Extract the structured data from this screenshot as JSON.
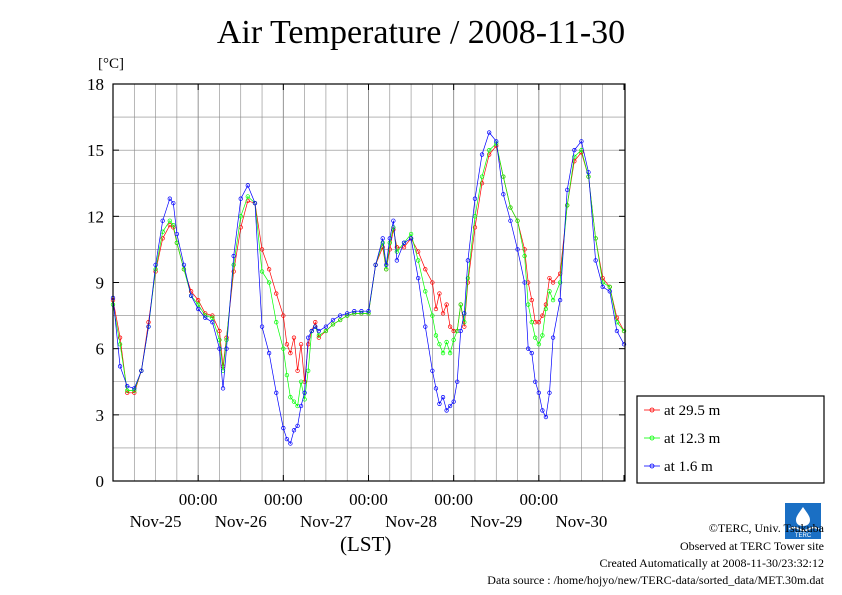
{
  "title": "Air Temperature / 2008-11-30",
  "unit_label": "[°C]",
  "xlabel": "(LST)",
  "credits": {
    "copyright": "©TERC, Univ. Tsukuba",
    "observed": "Observed at TERC Tower site",
    "created": "Created Automatically at 2008-11-30/23:32:12",
    "source": "Data source : /home/hojyo/new/TERC-data/sorted_data/MET.30m.dat"
  },
  "logo_text": "TERC",
  "colors": {
    "s29_5": "#ff0000",
    "s12_3": "#00ff00",
    "s1_6": "#0000ff",
    "grid": "#888888"
  },
  "chart_data": {
    "type": "line",
    "ylim": [
      0,
      18
    ],
    "yticks": [
      0,
      3,
      6,
      9,
      12,
      15,
      18
    ],
    "xlim": [
      0,
      6
    ],
    "xticks": [
      {
        "x": 1,
        "time": "00:00",
        "date": "Nov-25"
      },
      {
        "x": 2,
        "time": "00:00",
        "date": "Nov-26"
      },
      {
        "x": 3,
        "time": "00:00",
        "date": "Nov-27"
      },
      {
        "x": 4,
        "time": "00:00",
        "date": "Nov-28"
      },
      {
        "x": 5,
        "time": "00:00",
        "date": "Nov-29"
      },
      {
        "x": 6,
        "time": "",
        "date": "Nov-30"
      }
    ],
    "grid": true,
    "legend_position": "right",
    "series": [
      {
        "name": "at 29.5 m",
        "color": "#ff0000",
        "points": [
          [
            0.0,
            8.2
          ],
          [
            0.083,
            6.5
          ],
          [
            0.167,
            4.0
          ],
          [
            0.25,
            4.0
          ],
          [
            0.333,
            5.0
          ],
          [
            0.417,
            7.2
          ],
          [
            0.5,
            9.5
          ],
          [
            0.583,
            11.0
          ],
          [
            0.667,
            11.6
          ],
          [
            0.708,
            11.5
          ],
          [
            0.75,
            10.8
          ],
          [
            0.833,
            9.6
          ],
          [
            0.917,
            8.6
          ],
          [
            1.0,
            8.2
          ],
          [
            1.083,
            7.6
          ],
          [
            1.167,
            7.5
          ],
          [
            1.25,
            6.8
          ],
          [
            1.292,
            5.2
          ],
          [
            1.333,
            6.5
          ],
          [
            1.417,
            9.5
          ],
          [
            1.5,
            11.5
          ],
          [
            1.583,
            12.7
          ],
          [
            1.667,
            12.6
          ],
          [
            1.75,
            10.5
          ],
          [
            1.833,
            9.6
          ],
          [
            1.917,
            8.5
          ],
          [
            2.0,
            7.5
          ],
          [
            2.042,
            6.2
          ],
          [
            2.083,
            5.8
          ],
          [
            2.125,
            6.5
          ],
          [
            2.167,
            5.0
          ],
          [
            2.208,
            6.2
          ],
          [
            2.25,
            4.5
          ],
          [
            2.292,
            6.2
          ],
          [
            2.333,
            6.8
          ],
          [
            2.375,
            7.2
          ],
          [
            2.417,
            6.5
          ],
          [
            2.5,
            6.8
          ],
          [
            2.583,
            7.1
          ],
          [
            2.667,
            7.3
          ],
          [
            2.75,
            7.5
          ],
          [
            2.833,
            7.6
          ],
          [
            2.917,
            7.6
          ],
          [
            3.0,
            7.6
          ],
          [
            3.083,
            9.8
          ],
          [
            3.167,
            10.6
          ],
          [
            3.208,
            9.6
          ],
          [
            3.25,
            10.5
          ],
          [
            3.292,
            11.4
          ],
          [
            3.333,
            10.6
          ],
          [
            3.417,
            10.6
          ],
          [
            3.5,
            11.0
          ],
          [
            3.583,
            10.4
          ],
          [
            3.667,
            9.6
          ],
          [
            3.75,
            9.0
          ],
          [
            3.792,
            7.8
          ],
          [
            3.833,
            8.5
          ],
          [
            3.875,
            7.6
          ],
          [
            3.917,
            8.0
          ],
          [
            3.958,
            7.0
          ],
          [
            4.0,
            6.8
          ],
          [
            4.042,
            6.8
          ],
          [
            4.083,
            8.0
          ],
          [
            4.125,
            7.0
          ],
          [
            4.167,
            9.0
          ],
          [
            4.25,
            11.5
          ],
          [
            4.333,
            13.5
          ],
          [
            4.417,
            14.8
          ],
          [
            4.5,
            15.2
          ],
          [
            4.583,
            13.8
          ],
          [
            4.667,
            12.4
          ],
          [
            4.75,
            11.8
          ],
          [
            4.833,
            10.5
          ],
          [
            4.875,
            9.0
          ],
          [
            4.917,
            8.2
          ],
          [
            4.958,
            7.2
          ],
          [
            5.0,
            7.2
          ],
          [
            5.042,
            7.5
          ],
          [
            5.083,
            8.0
          ],
          [
            5.125,
            9.2
          ],
          [
            5.167,
            9.0
          ],
          [
            5.25,
            9.4
          ],
          [
            5.333,
            12.5
          ],
          [
            5.417,
            14.5
          ],
          [
            5.5,
            14.9
          ],
          [
            5.583,
            13.8
          ],
          [
            5.667,
            11.0
          ],
          [
            5.75,
            9.2
          ],
          [
            5.833,
            8.8
          ],
          [
            5.917,
            7.4
          ],
          [
            6.0,
            6.8
          ]
        ]
      },
      {
        "name": "at 12.3 m",
        "color": "#00ff00",
        "points": [
          [
            0.0,
            8.0
          ],
          [
            0.083,
            6.2
          ],
          [
            0.167,
            4.1
          ],
          [
            0.25,
            4.1
          ],
          [
            0.333,
            5.0
          ],
          [
            0.417,
            7.0
          ],
          [
            0.5,
            9.6
          ],
          [
            0.583,
            11.3
          ],
          [
            0.667,
            11.8
          ],
          [
            0.708,
            11.6
          ],
          [
            0.75,
            10.8
          ],
          [
            0.833,
            9.6
          ],
          [
            0.917,
            8.4
          ],
          [
            1.0,
            8.0
          ],
          [
            1.083,
            7.5
          ],
          [
            1.167,
            7.4
          ],
          [
            1.25,
            6.4
          ],
          [
            1.292,
            5.0
          ],
          [
            1.333,
            6.4
          ],
          [
            1.417,
            9.8
          ],
          [
            1.5,
            12.0
          ],
          [
            1.583,
            12.9
          ],
          [
            1.667,
            12.6
          ],
          [
            1.75,
            9.5
          ],
          [
            1.833,
            9.0
          ],
          [
            1.917,
            7.2
          ],
          [
            2.0,
            6.0
          ],
          [
            2.042,
            4.8
          ],
          [
            2.083,
            3.8
          ],
          [
            2.125,
            3.6
          ],
          [
            2.167,
            3.4
          ],
          [
            2.208,
            4.5
          ],
          [
            2.25,
            3.7
          ],
          [
            2.292,
            5.0
          ],
          [
            2.333,
            6.8
          ],
          [
            2.375,
            7.0
          ],
          [
            2.417,
            6.6
          ],
          [
            2.5,
            6.8
          ],
          [
            2.583,
            7.1
          ],
          [
            2.667,
            7.3
          ],
          [
            2.75,
            7.5
          ],
          [
            2.833,
            7.6
          ],
          [
            2.917,
            7.6
          ],
          [
            3.0,
            7.6
          ],
          [
            3.083,
            9.8
          ],
          [
            3.167,
            10.8
          ],
          [
            3.208,
            9.6
          ],
          [
            3.25,
            10.8
          ],
          [
            3.292,
            11.5
          ],
          [
            3.333,
            10.4
          ],
          [
            3.417,
            10.8
          ],
          [
            3.5,
            11.2
          ],
          [
            3.583,
            10.0
          ],
          [
            3.667,
            8.6
          ],
          [
            3.75,
            7.5
          ],
          [
            3.792,
            6.6
          ],
          [
            3.833,
            6.2
          ],
          [
            3.875,
            5.8
          ],
          [
            3.917,
            6.3
          ],
          [
            3.958,
            5.8
          ],
          [
            4.0,
            6.4
          ],
          [
            4.042,
            6.8
          ],
          [
            4.083,
            8.0
          ],
          [
            4.125,
            7.2
          ],
          [
            4.167,
            9.2
          ],
          [
            4.25,
            12.0
          ],
          [
            4.333,
            13.8
          ],
          [
            4.417,
            15.0
          ],
          [
            4.5,
            15.3
          ],
          [
            4.583,
            13.8
          ],
          [
            4.667,
            12.4
          ],
          [
            4.75,
            11.8
          ],
          [
            4.833,
            10.2
          ],
          [
            4.875,
            8.0
          ],
          [
            4.917,
            7.2
          ],
          [
            4.958,
            6.5
          ],
          [
            5.0,
            6.2
          ],
          [
            5.042,
            6.6
          ],
          [
            5.083,
            7.8
          ],
          [
            5.125,
            8.6
          ],
          [
            5.167,
            8.2
          ],
          [
            5.25,
            9.0
          ],
          [
            5.333,
            12.5
          ],
          [
            5.417,
            14.7
          ],
          [
            5.5,
            15.0
          ],
          [
            5.583,
            13.8
          ],
          [
            5.667,
            11.0
          ],
          [
            5.75,
            9.0
          ],
          [
            5.833,
            8.8
          ],
          [
            5.917,
            7.2
          ],
          [
            6.0,
            6.8
          ]
        ]
      },
      {
        "name": "at 1.6 m",
        "color": "#0000ff",
        "points": [
          [
            0.0,
            8.3
          ],
          [
            0.083,
            5.2
          ],
          [
            0.167,
            4.3
          ],
          [
            0.25,
            4.2
          ],
          [
            0.333,
            5.0
          ],
          [
            0.417,
            7.0
          ],
          [
            0.5,
            9.8
          ],
          [
            0.583,
            11.8
          ],
          [
            0.667,
            12.8
          ],
          [
            0.708,
            12.6
          ],
          [
            0.75,
            11.2
          ],
          [
            0.833,
            9.8
          ],
          [
            0.917,
            8.4
          ],
          [
            1.0,
            7.8
          ],
          [
            1.083,
            7.4
          ],
          [
            1.167,
            7.2
          ],
          [
            1.25,
            6.0
          ],
          [
            1.292,
            4.2
          ],
          [
            1.333,
            6.0
          ],
          [
            1.417,
            10.2
          ],
          [
            1.5,
            12.8
          ],
          [
            1.583,
            13.4
          ],
          [
            1.667,
            12.6
          ],
          [
            1.75,
            7.0
          ],
          [
            1.833,
            5.8
          ],
          [
            1.917,
            4.0
          ],
          [
            2.0,
            2.4
          ],
          [
            2.042,
            1.9
          ],
          [
            2.083,
            1.7
          ],
          [
            2.125,
            2.3
          ],
          [
            2.167,
            2.5
          ],
          [
            2.208,
            3.4
          ],
          [
            2.25,
            4.0
          ],
          [
            2.292,
            6.5
          ],
          [
            2.333,
            6.8
          ],
          [
            2.375,
            7.0
          ],
          [
            2.417,
            6.8
          ],
          [
            2.5,
            7.0
          ],
          [
            2.583,
            7.3
          ],
          [
            2.667,
            7.5
          ],
          [
            2.75,
            7.6
          ],
          [
            2.833,
            7.7
          ],
          [
            2.917,
            7.7
          ],
          [
            3.0,
            7.7
          ],
          [
            3.083,
            9.8
          ],
          [
            3.167,
            11.0
          ],
          [
            3.208,
            9.8
          ],
          [
            3.25,
            11.0
          ],
          [
            3.292,
            11.8
          ],
          [
            3.333,
            10.0
          ],
          [
            3.417,
            10.8
          ],
          [
            3.5,
            11.0
          ],
          [
            3.583,
            9.2
          ],
          [
            3.667,
            7.0
          ],
          [
            3.75,
            5.0
          ],
          [
            3.792,
            4.2
          ],
          [
            3.833,
            3.5
          ],
          [
            3.875,
            3.8
          ],
          [
            3.917,
            3.2
          ],
          [
            3.958,
            3.4
          ],
          [
            4.0,
            3.6
          ],
          [
            4.042,
            4.5
          ],
          [
            4.083,
            6.8
          ],
          [
            4.125,
            7.6
          ],
          [
            4.167,
            10.0
          ],
          [
            4.25,
            12.8
          ],
          [
            4.333,
            14.8
          ],
          [
            4.417,
            15.8
          ],
          [
            4.5,
            15.4
          ],
          [
            4.583,
            13.0
          ],
          [
            4.667,
            11.8
          ],
          [
            4.75,
            10.5
          ],
          [
            4.833,
            9.0
          ],
          [
            4.875,
            6.0
          ],
          [
            4.917,
            5.8
          ],
          [
            4.958,
            4.5
          ],
          [
            5.0,
            4.0
          ],
          [
            5.042,
            3.2
          ],
          [
            5.083,
            2.9
          ],
          [
            5.125,
            4.0
          ],
          [
            5.167,
            6.5
          ],
          [
            5.25,
            8.2
          ],
          [
            5.333,
            13.2
          ],
          [
            5.417,
            15.0
          ],
          [
            5.5,
            15.4
          ],
          [
            5.583,
            14.0
          ],
          [
            5.667,
            10.0
          ],
          [
            5.75,
            8.8
          ],
          [
            5.833,
            8.6
          ],
          [
            5.917,
            6.8
          ],
          [
            6.0,
            6.2
          ]
        ]
      }
    ]
  }
}
